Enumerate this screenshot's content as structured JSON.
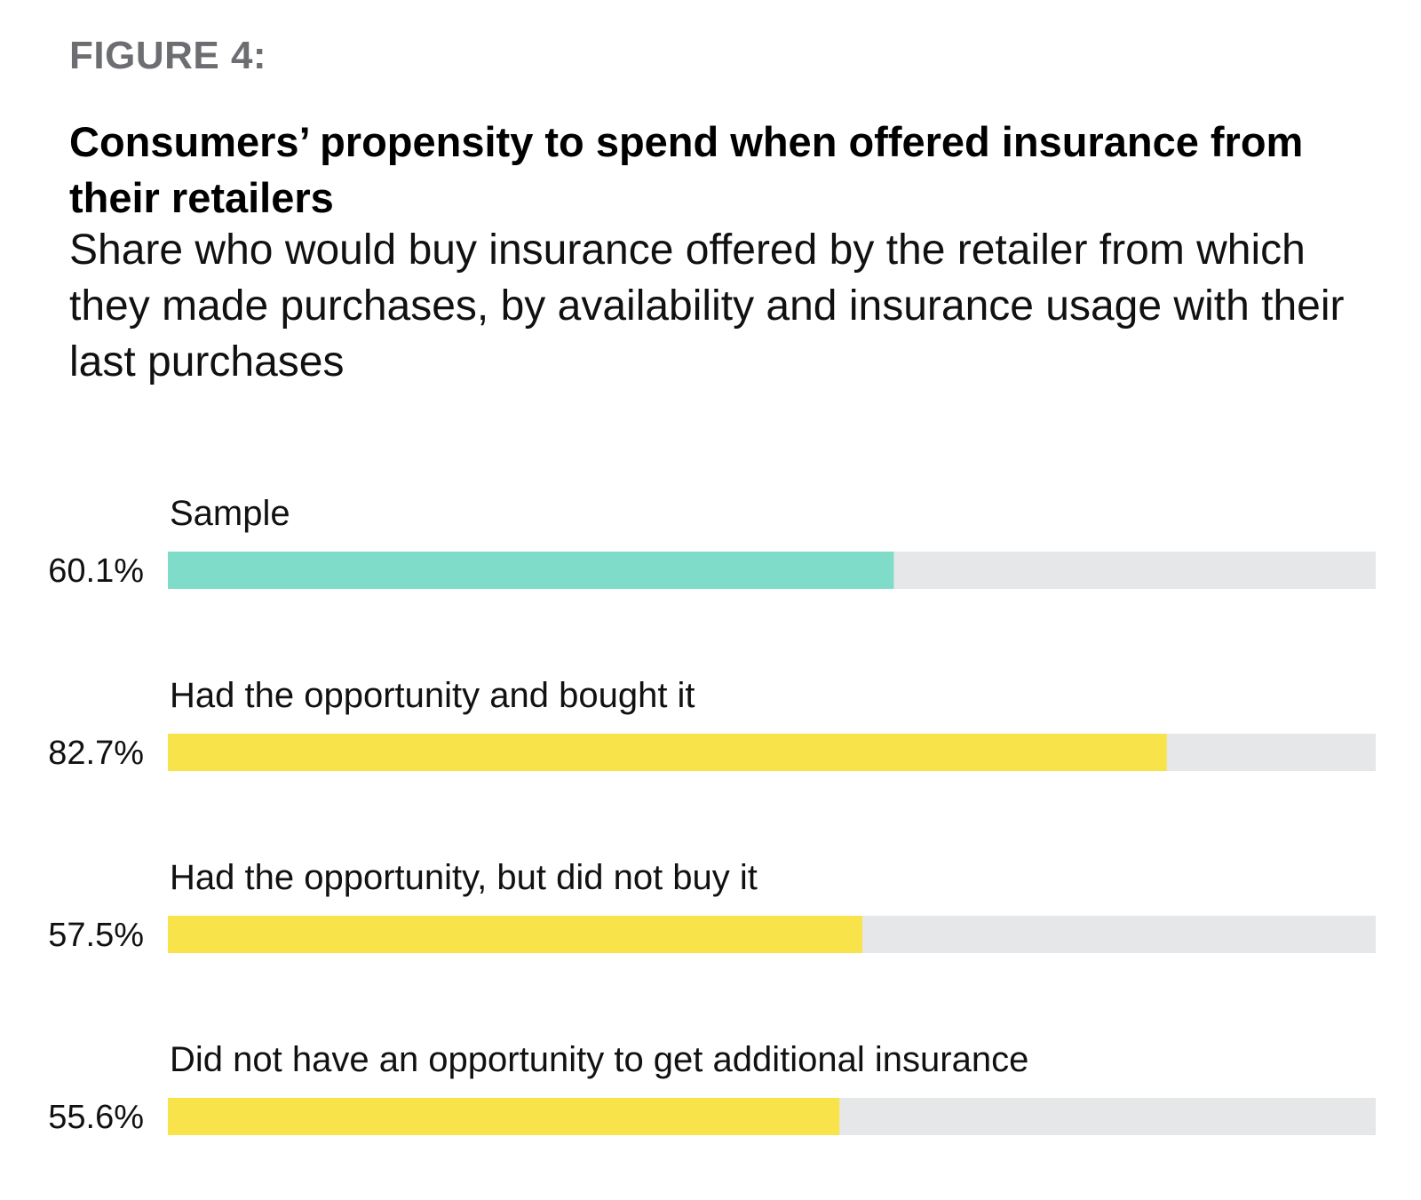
{
  "figure_label": "FIGURE 4:",
  "colors": {
    "track": "#e6e7e8",
    "sample_bar": "#7fdcc8",
    "group_bar": "#f9e34b"
  },
  "chart_data": {
    "type": "bar",
    "orientation": "horizontal",
    "title": "Consumers’ propensity to spend when offered insurance from their retailers",
    "subtitle": "Share who would buy insurance offered by the retailer from which they made purchases, by availability and insurance usage with their last purchases",
    "xlim": [
      0,
      100
    ],
    "grid": false,
    "bars": [
      {
        "category": "Sample",
        "value": 60.1,
        "label": "60.1%",
        "color": "#7fdcc8"
      },
      {
        "category": "Had the opportunity and bought it",
        "value": 82.7,
        "label": "82.7%",
        "color": "#f9e34b"
      },
      {
        "category": "Had the opportunity, but did not buy it",
        "value": 57.5,
        "label": "57.5%",
        "color": "#f9e34b"
      },
      {
        "category": "Did not have an opportunity to get additional insurance",
        "value": 55.6,
        "label": "55.6%",
        "color": "#f9e34b"
      }
    ]
  }
}
